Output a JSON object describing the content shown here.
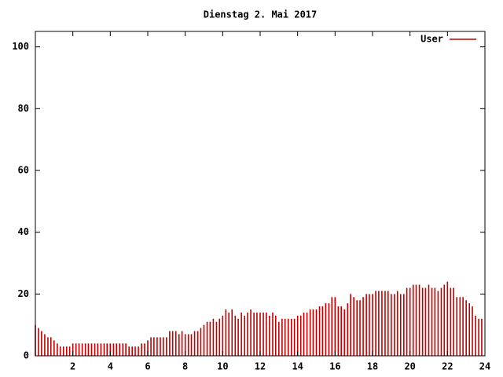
{
  "chart_data": {
    "type": "impulse",
    "title": "Dienstag 2. Mai 2017",
    "series": [
      {
        "name": "User",
        "color": "#c00000",
        "x": [
          0,
          0.17,
          0.33,
          0.5,
          0.67,
          0.83,
          1,
          1.17,
          1.33,
          1.5,
          1.67,
          1.83,
          2,
          2.17,
          2.33,
          2.5,
          2.67,
          2.83,
          3,
          3.17,
          3.33,
          3.5,
          3.67,
          3.83,
          4,
          4.17,
          4.33,
          4.5,
          4.67,
          4.83,
          5,
          5.17,
          5.33,
          5.5,
          5.67,
          5.83,
          6,
          6.17,
          6.33,
          6.5,
          6.67,
          6.83,
          7,
          7.17,
          7.33,
          7.5,
          7.67,
          7.83,
          8,
          8.17,
          8.33,
          8.5,
          8.67,
          8.83,
          9,
          9.17,
          9.33,
          9.5,
          9.67,
          9.83,
          10,
          10.17,
          10.33,
          10.5,
          10.67,
          10.83,
          11,
          11.17,
          11.33,
          11.5,
          11.67,
          11.83,
          12,
          12.17,
          12.33,
          12.5,
          12.67,
          12.83,
          13,
          13.17,
          13.33,
          13.5,
          13.67,
          13.83,
          14,
          14.17,
          14.33,
          14.5,
          14.67,
          14.83,
          15,
          15.17,
          15.33,
          15.5,
          15.67,
          15.83,
          16,
          16.17,
          16.33,
          16.5,
          16.67,
          16.83,
          17,
          17.17,
          17.33,
          17.5,
          17.67,
          17.83,
          18,
          18.17,
          18.33,
          18.5,
          18.67,
          18.83,
          19,
          19.17,
          19.33,
          19.5,
          19.67,
          19.83,
          20,
          20.17,
          20.33,
          20.5,
          20.67,
          20.83,
          21,
          21.17,
          21.33,
          21.5,
          21.67,
          21.83,
          22,
          22.17,
          22.33,
          22.5,
          22.67,
          22.83,
          23,
          23.17,
          23.33,
          23.5,
          23.67,
          23.83
        ],
        "values": [
          10,
          9,
          8,
          7,
          6,
          6,
          5,
          4,
          3,
          3,
          3,
          3,
          4,
          4,
          4,
          4,
          4,
          4,
          4,
          4,
          4,
          4,
          4,
          4,
          4,
          4,
          4,
          4,
          4,
          4,
          3,
          3,
          3,
          3,
          4,
          4,
          5,
          6,
          6,
          6,
          6,
          6,
          6,
          8,
          8,
          8,
          7,
          8,
          7,
          7,
          7,
          8,
          8,
          9,
          10,
          11,
          11,
          12,
          11,
          12,
          13,
          15,
          14,
          15,
          13,
          12,
          14,
          13,
          14,
          15,
          14,
          14,
          14,
          14,
          14,
          13,
          14,
          13,
          11,
          12,
          12,
          12,
          12,
          12,
          13,
          13,
          14,
          14,
          15,
          15,
          15,
          16,
          16,
          17,
          17,
          19,
          19,
          16,
          16,
          15,
          17,
          20,
          19,
          18,
          18,
          19,
          20,
          20,
          20,
          21,
          21,
          21,
          21,
          21,
          20,
          20,
          21,
          20,
          20,
          22,
          22,
          23,
          23,
          23,
          22,
          22,
          23,
          22,
          22,
          21,
          22,
          23,
          24,
          22,
          22,
          19,
          19,
          19,
          18,
          17,
          16,
          13,
          12,
          12
        ]
      }
    ],
    "xlim": [
      0,
      24
    ],
    "xticks": [
      2,
      4,
      6,
      8,
      10,
      12,
      14,
      16,
      18,
      20,
      22,
      24
    ],
    "ylim": [
      0,
      105
    ],
    "yticks": [
      0,
      20,
      40,
      60,
      80,
      100
    ],
    "legend": "top-right"
  }
}
